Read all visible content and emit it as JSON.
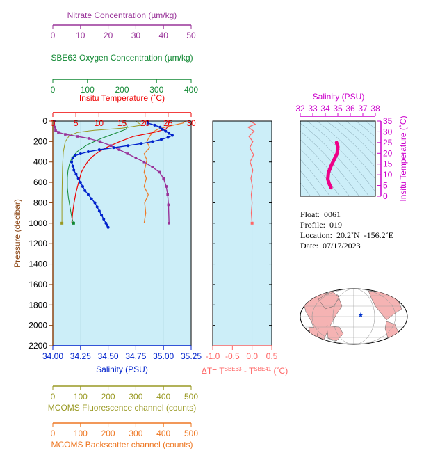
{
  "colors": {
    "nitrate": "#993399",
    "oxygen": "#118833",
    "temperature": "#ee0000",
    "salinity": "#0022cc",
    "fluorescence": "#999922",
    "backscatter": "#ee7722",
    "delta_t": "#ff6666",
    "ts_axis": "#cc00cc",
    "plot_bg": "#cceef8"
  },
  "axes": {
    "nitrate": {
      "label": "Nitrate Concentration (µm/kg)",
      "ticks": [
        "0",
        "10",
        "20",
        "30",
        "40",
        "50"
      ]
    },
    "oxygen": {
      "label": "SBE63 Oxygen Concentration (µm/kg)",
      "ticks": [
        "0",
        "100",
        "200",
        "300",
        "400"
      ]
    },
    "temperature": {
      "label": "Insitu Temperature (˚C)",
      "ticks": [
        "0",
        "5",
        "10",
        "15",
        "20",
        "25",
        "30"
      ]
    },
    "pressure": {
      "label": "Pressure (decibar)",
      "ticks": [
        "0",
        "200",
        "400",
        "600",
        "800",
        "1000",
        "1200",
        "1400",
        "1600",
        "1800",
        "2000",
        "2200"
      ]
    },
    "salinity": {
      "label": "Salinity (PSU)",
      "ticks": [
        "34.00",
        "34.25",
        "34.50",
        "34.75",
        "35.00",
        "35.25"
      ]
    },
    "fluorescence": {
      "label": "MCOMS Fluorescence channel (counts)",
      "ticks": [
        "0",
        "100",
        "200",
        "300",
        "400",
        "500"
      ]
    },
    "backscatter": {
      "label": "MCOMS Backscatter channel (counts)",
      "ticks": [
        "0",
        "100",
        "200",
        "300",
        "400",
        "500"
      ]
    },
    "delta_t": {
      "label_prefix": "ΔT= T",
      "sup1": "SBE63",
      "mid": " - T",
      "sup2": "SBE41",
      "suffix": " (˚C)",
      "ticks": [
        "-1.0",
        "-0.5",
        "0.0",
        "0.5"
      ]
    },
    "ts_salinity": {
      "label": "Salinity (PSU)",
      "ticks": [
        "32",
        "33",
        "34",
        "35",
        "36",
        "37",
        "38"
      ]
    },
    "ts_temperature": {
      "label": "Insitu Temperature (˚C)",
      "ticks": [
        "0",
        "5",
        "10",
        "15",
        "20",
        "25",
        "30",
        "35"
      ]
    }
  },
  "info": {
    "float": "Float:  0061",
    "profile": "Profile:  019",
    "location": "Location:  20.2˚N  -156.2˚E",
    "date": "Date:  07/17/2023"
  },
  "chart_data": {
    "type": "line",
    "pressure_range": [
      0,
      2200
    ],
    "series": {
      "temperature": {
        "x": [
          25.2,
          25.0,
          24.5,
          22.0,
          17.5,
          14.5,
          12.0,
          10.0,
          8.5,
          7.5,
          6.8,
          6.2,
          5.6,
          5.0,
          4.6,
          4.3,
          4.1
        ],
        "p": [
          0,
          50,
          80,
          110,
          150,
          200,
          250,
          300,
          350,
          400,
          450,
          500,
          600,
          700,
          800,
          900,
          1000
        ]
      },
      "salinity": {
        "x": [
          34.86,
          34.86,
          34.92,
          34.97,
          34.99,
          35.02,
          35.05,
          35.08,
          35.04,
          34.98,
          34.9,
          34.8,
          34.68,
          34.55,
          34.42,
          34.32,
          34.25,
          34.2,
          34.18,
          34.17,
          34.18,
          34.19,
          34.21,
          34.23,
          34.25,
          34.27,
          34.29,
          34.32,
          34.35,
          34.38,
          34.4,
          34.42,
          34.44,
          34.46,
          34.48,
          34.49,
          34.5
        ],
        "p": [
          0,
          20,
          40,
          60,
          80,
          100,
          120,
          140,
          160,
          180,
          200,
          220,
          240,
          260,
          280,
          300,
          320,
          340,
          360,
          400,
          440,
          480,
          520,
          560,
          600,
          640,
          680,
          720,
          760,
          800,
          840,
          880,
          920,
          960,
          1000,
          1020,
          1040
        ]
      },
      "nitrate": {
        "x": [
          0.5,
          0.7,
          1.0,
          2.0,
          4.5,
          9.0,
          13.0,
          17.0,
          21.0,
          24.0,
          27.0,
          30.0,
          33.0,
          36.0,
          38.5,
          40.0,
          41.0,
          41.5,
          41.8,
          42.0
        ],
        "p": [
          0,
          60,
          90,
          110,
          130,
          150,
          170,
          200,
          240,
          280,
          320,
          360,
          400,
          450,
          500,
          560,
          640,
          720,
          820,
          1000
        ]
      },
      "oxygen": {
        "x": [
          205,
          215,
          212,
          180,
          140,
          100,
          70,
          55,
          48,
          44,
          42,
          42,
          45,
          50,
          55,
          60
        ],
        "p": [
          0,
          50,
          80,
          120,
          170,
          230,
          300,
          360,
          420,
          480,
          550,
          650,
          750,
          850,
          950,
          1000
        ]
      },
      "fluorescence": {
        "x": [
          300,
          320,
          250,
          150,
          90,
          60,
          45,
          38,
          35,
          34,
          33,
          33
        ],
        "p": [
          0,
          40,
          70,
          90,
          110,
          140,
          200,
          300,
          450,
          600,
          800,
          1000
        ]
      },
      "backscatter": {
        "x": [
          480,
          470,
          420,
          380,
          360,
          350,
          340,
          350,
          330,
          340,
          335,
          330,
          338,
          330,
          345,
          332,
          336,
          330
        ],
        "p": [
          0,
          20,
          50,
          80,
          110,
          150,
          200,
          260,
          320,
          380,
          440,
          500,
          560,
          640,
          720,
          800,
          900,
          1000
        ]
      },
      "delta_t": {
        "x": [
          -0.05,
          0.08,
          -0.1,
          0.05,
          -0.08,
          0.02,
          -0.06,
          0.04,
          -0.05,
          0.02,
          -0.03,
          0.01,
          -0.02,
          0.0,
          -0.02,
          0.0
        ],
        "p": [
          0,
          30,
          60,
          100,
          150,
          200,
          260,
          330,
          400,
          480,
          560,
          640,
          720,
          800,
          900,
          1000
        ]
      }
    },
    "ts_diagram": {
      "xlim": [
        32,
        38
      ],
      "ylim": [
        0,
        35
      ],
      "salinity": [
        34.9,
        35.0,
        34.95,
        34.7,
        34.45,
        34.25,
        34.2,
        34.3,
        34.45
      ],
      "temperature": [
        25,
        23,
        20,
        17,
        14,
        11,
        8,
        6,
        4
      ]
    }
  }
}
